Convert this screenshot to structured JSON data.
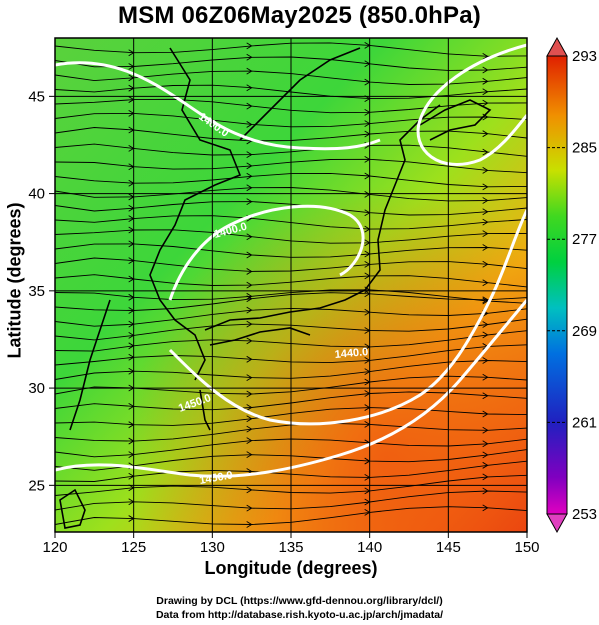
{
  "title": "MSM 06Z06May2025 (850.0hPa)",
  "map": {
    "xlabel": "Longitude (degrees)",
    "ylabel": "Latitude  (degrees)",
    "lon_range": [
      120,
      150
    ],
    "lat_range": [
      22.6,
      48
    ],
    "x_ticks": [
      "120",
      "125",
      "130",
      "135",
      "140",
      "145",
      "150"
    ],
    "y_ticks": [
      "25",
      "30",
      "35",
      "40",
      "45"
    ],
    "contour_labels": [
      "1400.0",
      "1400.0",
      "1450.0",
      "1440.0",
      "1450.0"
    ],
    "field": "temperature (K) with streamlines and geopotential height contours"
  },
  "colorbar": {
    "labels": [
      "293",
      "285",
      "277",
      "269",
      "261",
      "253"
    ],
    "min": 253,
    "max": 293,
    "colors": [
      "#e00080",
      "#4010c0",
      "#0060e0",
      "#00c0c0",
      "#00c040",
      "#40d020",
      "#c8e000",
      "#f09000",
      "#e03000"
    ]
  },
  "credits": {
    "line1": "Drawing by DCL (https://www.gfd-dennou.org/library/dcl/)",
    "line2": "Data from http://database.rish.kyoto-u.ac.jp/arch/jmadata/"
  }
}
